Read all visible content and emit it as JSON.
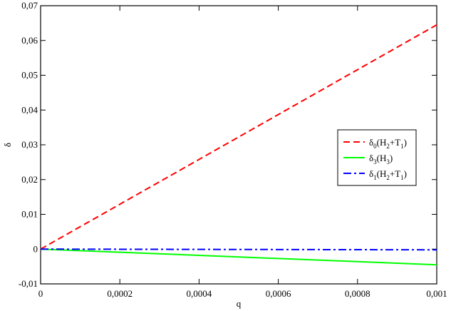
{
  "chart_data": {
    "type": "line",
    "x_label": "q",
    "y_label": "δ",
    "x": [
      0,
      0.0002,
      0.0004,
      0.0006,
      0.0008,
      0.001
    ],
    "series": [
      {
        "name": "δ0(H2+T1)",
        "color": "#ff0000",
        "style": "dashed",
        "values": [
          0,
          0.0129,
          0.0258,
          0.0387,
          0.0516,
          0.0645
        ]
      },
      {
        "name": "δ3(H3)",
        "color": "#00ff00",
        "style": "solid",
        "values": [
          0,
          -0.0009,
          -0.0018,
          -0.0027,
          -0.0036,
          -0.0045
        ]
      },
      {
        "name": "δ1(H2+T1)",
        "color": "#0000ff",
        "style": "dashdot",
        "values": [
          0,
          -4e-05,
          -8e-05,
          -0.00012,
          -0.00016,
          -0.0002
        ]
      }
    ],
    "xlim": [
      0,
      0.001
    ],
    "ylim": [
      -0.01,
      0.07
    ],
    "xticks": [
      0,
      {
        "value": 0.0002,
        "label": "0,0002"
      },
      {
        "value": 0.0004,
        "label": "0,0004"
      },
      {
        "value": 0.0006,
        "label": "0,0006"
      },
      {
        "value": 0.0008,
        "label": "0,0008"
      },
      {
        "value": 0.001,
        "label": "0,001"
      }
    ],
    "yticks": [
      {
        "value": -0.01,
        "label": "-0,01"
      },
      0,
      {
        "value": 0.01,
        "label": "0,01"
      },
      {
        "value": 0.02,
        "label": "0,02"
      },
      {
        "value": 0.03,
        "label": "0,03"
      },
      {
        "value": 0.04,
        "label": "0,04"
      },
      {
        "value": 0.05,
        "label": "0,05"
      },
      {
        "value": 0.06,
        "label": "0,06"
      },
      {
        "value": 0.07,
        "label": "0,07"
      }
    ],
    "grid": false,
    "legend": "center right"
  }
}
